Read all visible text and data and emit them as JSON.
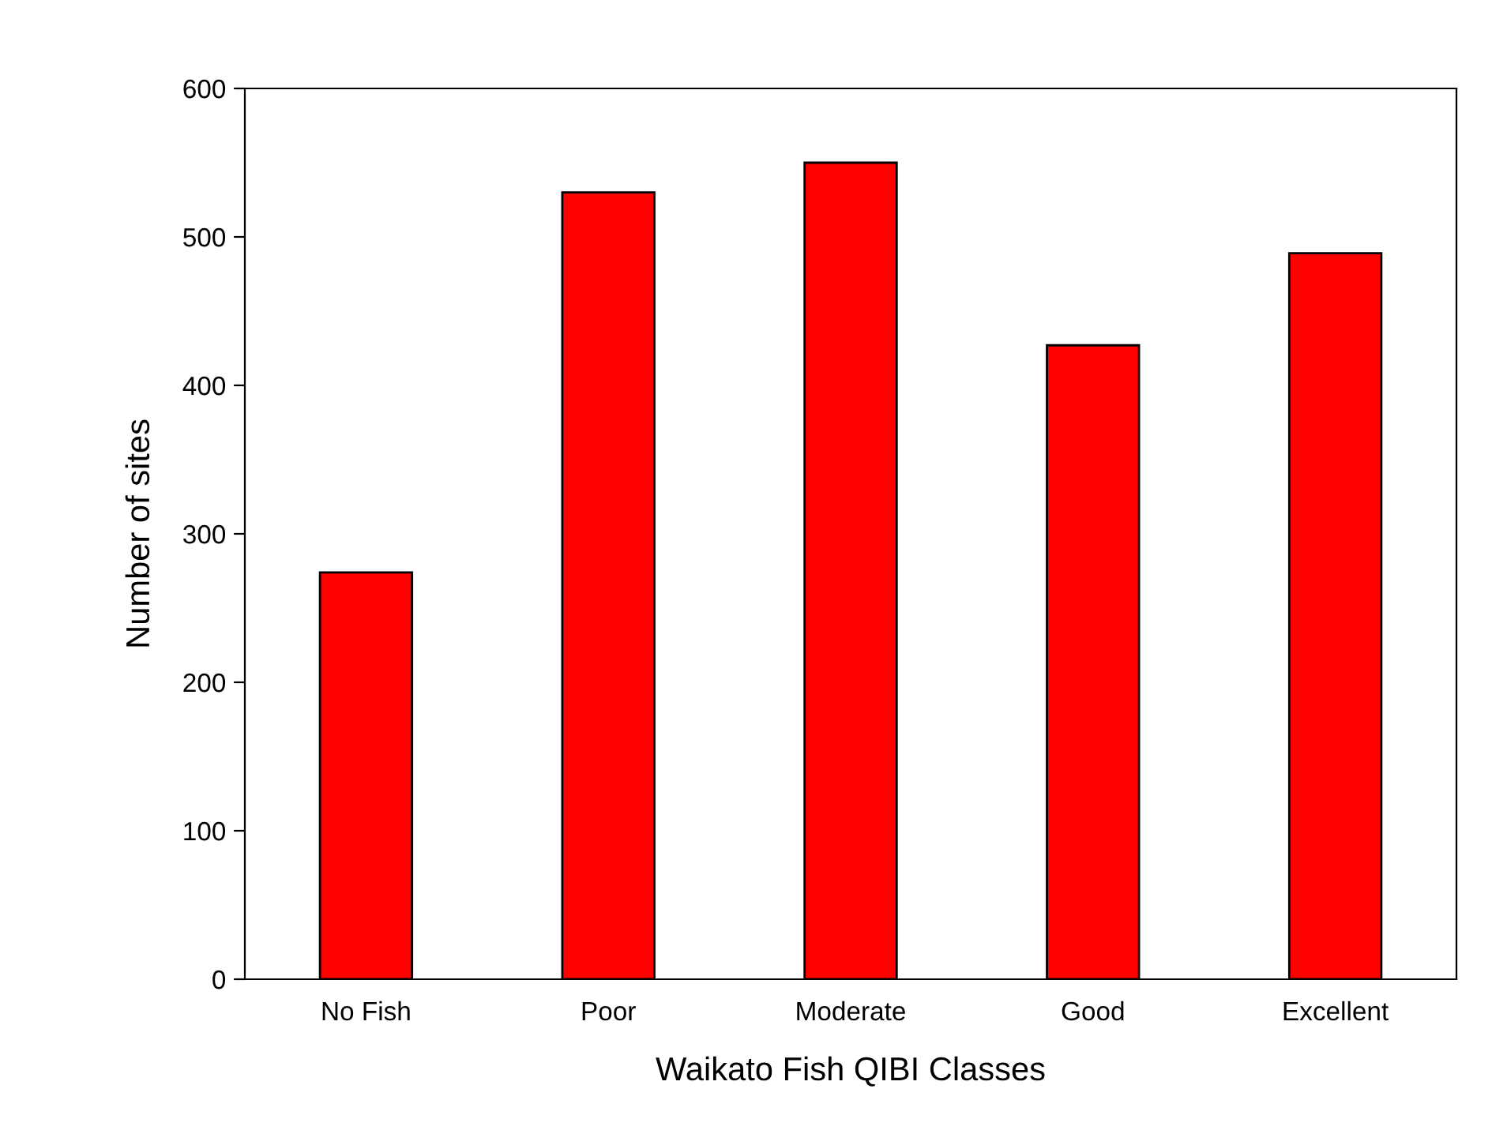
{
  "chart_data": {
    "type": "bar",
    "xlabel": "Waikato Fish QIBI Classes",
    "ylabel": "Number of sites",
    "categories": [
      "No Fish",
      "Poor",
      "Moderate",
      "Good",
      "Excellent"
    ],
    "values": [
      274,
      530,
      550,
      427,
      489
    ],
    "color": "#ff0000",
    "ylim": [
      0,
      600
    ],
    "yticks": [
      0,
      100,
      200,
      300,
      400,
      500,
      600
    ],
    "grid": false,
    "legend": false
  }
}
